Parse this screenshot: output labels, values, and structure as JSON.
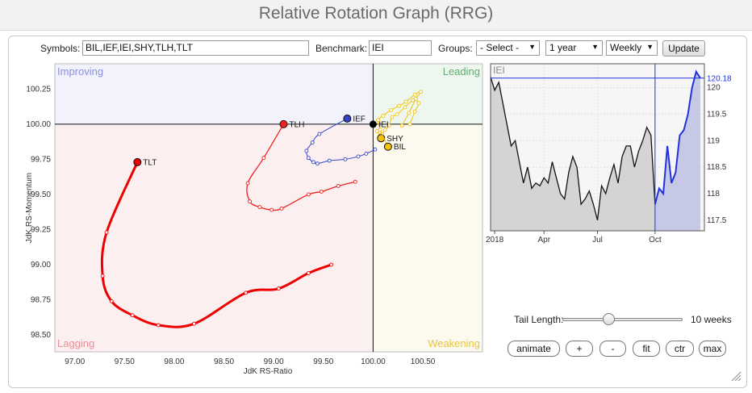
{
  "header": {
    "title": "Relative Rotation Graph (RRG)"
  },
  "controls": {
    "symbols_label": "Symbols:",
    "symbols_value": "BIL,IEF,IEI,SHY,TLH,TLT",
    "benchmark_label": "Benchmark:",
    "benchmark_value": "IEI",
    "groups_label": "Groups:",
    "groups_value": "- Select -",
    "period_value": "1 year",
    "frequency_value": "Weekly",
    "update_label": "Update"
  },
  "chart_data": [
    {
      "type": "scatter",
      "xlabel": "JdK RS-Ratio",
      "ylabel": "JdK RS-Momentum",
      "xlim": [
        96.8,
        101.1
      ],
      "ylim": [
        98.38,
        100.43
      ],
      "xticks": [
        "97.00",
        "97.50",
        "98.00",
        "98.50",
        "99.00",
        "99.50",
        "100.00",
        "100.50"
      ],
      "xtick_values": [
        97.0,
        97.5,
        98.0,
        98.5,
        99.0,
        99.5,
        100.0,
        100.5
      ],
      "yticks": [
        "100.25",
        "100.00",
        "99.75",
        "99.50",
        "99.25",
        "99.00",
        "98.75",
        "98.50"
      ],
      "ytick_values": [
        100.25,
        100.0,
        99.75,
        99.5,
        99.25,
        99.0,
        98.75,
        98.5
      ],
      "center": [
        100,
        100
      ],
      "quadrants": {
        "improving": {
          "label": "Improving",
          "color": "#8a8fdc",
          "fill": "#f1f2fb"
        },
        "leading": {
          "label": "Leading",
          "color": "#5fae6e",
          "fill": "#eef7ef"
        },
        "lagging": {
          "label": "Lagging",
          "color": "#f08c96",
          "fill": "#fcefef"
        },
        "weakening": {
          "label": "Weakening",
          "color": "#e8c53a",
          "fill": "#fcf9ef"
        }
      },
      "series": [
        {
          "name": "TLT",
          "color": "#ee0000",
          "width": 3,
          "x": [
            99.58,
            99.35,
            99.05,
            98.72,
            98.2,
            97.84,
            97.58,
            97.37,
            97.28,
            97.32,
            97.63
          ],
          "y": [
            99.0,
            98.94,
            98.83,
            98.8,
            98.58,
            98.57,
            98.64,
            98.74,
            98.92,
            99.23,
            99.73
          ]
        },
        {
          "name": "TLH",
          "color": "#ee2222",
          "width": 1.3,
          "x": [
            99.82,
            99.65,
            99.48,
            99.35,
            99.08,
            98.98,
            98.86,
            98.76,
            98.74,
            98.9,
            99.1
          ],
          "y": [
            99.59,
            99.56,
            99.52,
            99.5,
            99.4,
            99.39,
            99.41,
            99.45,
            99.58,
            99.76,
            100.0
          ]
        },
        {
          "name": "IEF",
          "color": "#3344cc",
          "width": 1,
          "x": [
            100.02,
            99.93,
            99.85,
            99.72,
            99.56,
            99.44,
            99.4,
            99.35,
            99.33,
            99.39,
            99.46,
            99.74
          ],
          "y": [
            99.82,
            99.79,
            99.77,
            99.75,
            99.74,
            99.72,
            99.73,
            99.76,
            99.81,
            99.87,
            99.93,
            100.04
          ]
        },
        {
          "name": "SHY",
          "color": "#f2c20a",
          "width": 1,
          "x": [
            100.37,
            100.42,
            100.46,
            100.4,
            100.32,
            100.24,
            100.19,
            100.16,
            100.12,
            100.09,
            100.07,
            100.04,
            100.08
          ],
          "y": [
            100.0,
            100.09,
            100.15,
            100.17,
            100.12,
            100.07,
            100.05,
            99.99,
            99.96,
            99.93,
            99.92,
            99.95,
            99.9
          ]
        },
        {
          "name": "BIL",
          "color": "#f2c20a",
          "width": 1,
          "x": [
            100.29,
            100.36,
            100.43,
            100.48,
            100.42,
            100.33,
            100.26,
            100.18,
            100.1,
            100.05,
            100.07,
            100.15
          ],
          "y": [
            99.99,
            100.08,
            100.18,
            100.23,
            100.21,
            100.16,
            100.13,
            100.1,
            100.06,
            100.03,
            99.96,
            99.84
          ]
        }
      ],
      "benchmark": {
        "name": "IEI",
        "x": 100.0,
        "y": 100.0,
        "color": "#000000"
      },
      "head_labels": [
        "TLT",
        "TLH",
        "IEF",
        "IEI",
        "SHY",
        "BIL"
      ]
    },
    {
      "type": "line",
      "title": "IEI",
      "xticks": [
        "2018",
        "Apr",
        "Jul",
        "Oct"
      ],
      "xtick_values": [
        1,
        13,
        26,
        40
      ],
      "yticks": [
        "120",
        "119.5",
        "119",
        "118.5",
        "118",
        "117.5"
      ],
      "ytick_values": [
        120.0,
        119.5,
        119.0,
        118.5,
        118.0,
        117.5
      ],
      "ylim": [
        117.3,
        120.45
      ],
      "xlim": [
        0,
        52
      ],
      "last_value": "120.18",
      "tail_start_index": 40,
      "series": [
        {
          "name": "IEI",
          "values": [
            120.2,
            119.95,
            120.1,
            119.7,
            119.3,
            118.9,
            119.0,
            118.6,
            118.2,
            118.5,
            118.1,
            118.2,
            118.15,
            118.3,
            118.2,
            118.6,
            118.3,
            118.0,
            117.9,
            118.4,
            118.7,
            118.5,
            117.8,
            117.9,
            118.05,
            117.8,
            117.5,
            118.15,
            118.0,
            118.3,
            118.55,
            118.2,
            118.7,
            118.9,
            118.9,
            118.5,
            118.8,
            119.0,
            119.25,
            119.1,
            117.8,
            118.1,
            118.0,
            118.9,
            118.2,
            118.4,
            119.1,
            119.2,
            119.5,
            120.0,
            120.3,
            120.18
          ]
        }
      ]
    }
  ],
  "tail": {
    "label": "Tail Length:",
    "value": "10 weeks",
    "weeks": 10,
    "max_weeks": 26
  },
  "buttons": {
    "animate": "animate",
    "plus": "+",
    "minus": "-",
    "fit": "fit",
    "ctr": "ctr",
    "max": "max"
  }
}
